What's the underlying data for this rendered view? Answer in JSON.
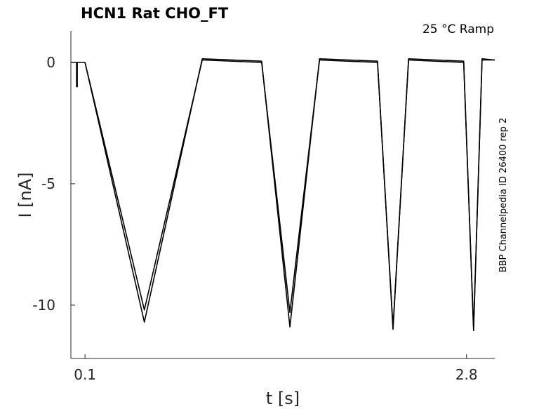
{
  "chart_data": {
    "type": "line",
    "title": "HCN1  Rat  CHO_FT",
    "annotation": "25 °C  Ramp",
    "side_label": "BBP Channelpedia ID 26400 rep 2",
    "xlabel": "t [s]",
    "ylabel": "I [nA]",
    "xlim": [
      0,
      3.0
    ],
    "ylim": [
      -12.2,
      1.3
    ],
    "x_ticks": [
      0.1,
      2.8
    ],
    "x_tick_labels": [
      "0.1",
      "2.8"
    ],
    "y_ticks": [
      0,
      -5,
      -10
    ],
    "y_tick_labels": [
      "0",
      "-5",
      "-10"
    ],
    "grid": false,
    "line_color": "#000000",
    "series": [
      {
        "x": [
          0,
          0.04,
          0.04,
          0.045,
          0.045,
          0.1,
          0.52,
          0.93,
          1.35,
          1.55,
          1.76,
          2.17,
          2.28,
          2.39,
          2.78,
          2.85,
          2.91,
          3.0
        ],
        "y": [
          0,
          0,
          -1.0,
          -1.0,
          0,
          0,
          -10.2,
          0.1,
          0,
          -10.3,
          0.1,
          0,
          -10.9,
          0.1,
          0.0,
          -10.95,
          0.1,
          0.1
        ]
      },
      {
        "x": [
          0.1,
          0.52,
          0.93,
          1.35,
          1.55,
          1.76,
          2.17,
          2.28,
          2.39,
          2.78,
          2.85,
          2.91,
          3.0
        ],
        "y": [
          0,
          -10.7,
          0.15,
          0.05,
          -10.9,
          0.15,
          0.05,
          -11.0,
          0.15,
          0.05,
          -11.05,
          0.15,
          0.1
        ]
      }
    ]
  }
}
